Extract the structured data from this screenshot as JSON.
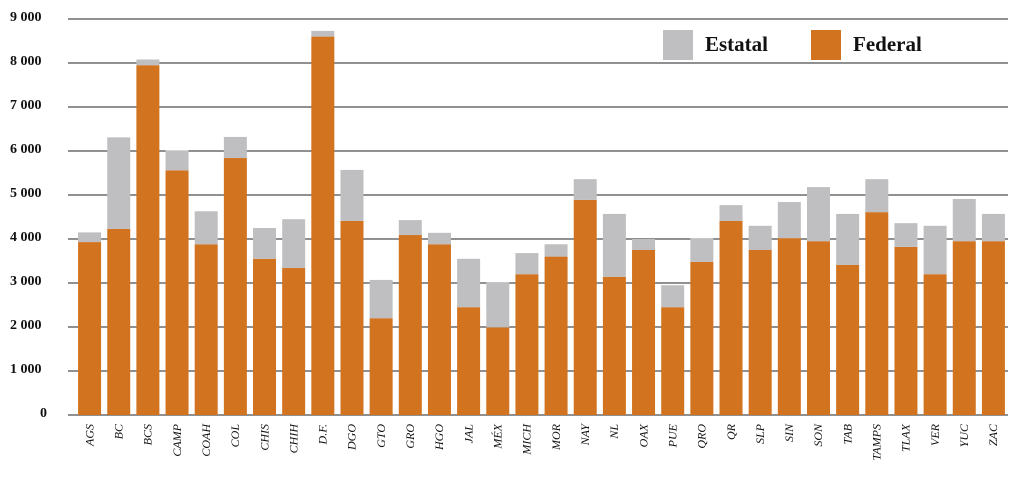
{
  "chart_data": {
    "type": "bar",
    "stacked": true,
    "categories": [
      "AGS",
      "BC",
      "BCS",
      "CAMP",
      "COAH",
      "COL",
      "CHIS",
      "CHIH",
      "D.F.",
      "DGO",
      "GTO",
      "GRO",
      "HGO",
      "JAL",
      "MÉX",
      "MICH",
      "MOR",
      "NAY",
      "NL",
      "OAX",
      "PUE",
      "QRO",
      "QR",
      "SLP",
      "SIN",
      "SON",
      "TAB",
      "TAMPS",
      "TLAX",
      "VER",
      "YUC",
      "ZAC"
    ],
    "series": [
      {
        "name": "Federal",
        "color": "#d2731f",
        "values": [
          3930,
          4230,
          7950,
          5560,
          3880,
          5840,
          3550,
          3340,
          8600,
          4410,
          2200,
          4090,
          3880,
          2450,
          1990,
          3200,
          3600,
          4890,
          3140,
          3750,
          2450,
          3480,
          4410,
          3750,
          4020,
          3950,
          3410,
          4610,
          3820,
          3200,
          3950,
          3950
        ]
      },
      {
        "name": "Estatal",
        "color": "#bfbfc1",
        "values": [
          220,
          2080,
          130,
          450,
          750,
          480,
          700,
          1110,
          130,
          1160,
          870,
          340,
          260,
          1100,
          1030,
          480,
          280,
          470,
          1430,
          250,
          500,
          540,
          360,
          550,
          820,
          1230,
          1160,
          750,
          540,
          1100,
          960,
          620
        ]
      }
    ],
    "ylim": [
      0,
      9000
    ],
    "yticks": [
      0,
      {
        "value": 1000,
        "label": "1 000"
      },
      {
        "value": 2000,
        "label": "2 000"
      },
      {
        "value": 3000,
        "label": "3 000"
      },
      {
        "value": 4000,
        "label": "4 000"
      },
      {
        "value": 5000,
        "label": "5 000"
      },
      {
        "value": 6000,
        "label": "6 000"
      },
      {
        "value": 7000,
        "label": "7 000"
      },
      {
        "value": 8000,
        "label": "8 000"
      },
      {
        "value": 9000,
        "label": "9 000"
      }
    ],
    "grid": true,
    "legend": "top-right"
  }
}
